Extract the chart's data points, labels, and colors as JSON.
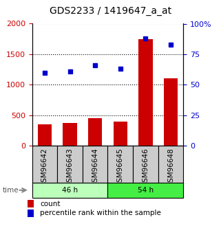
{
  "title": "GDS2233 / 1419647_a_at",
  "samples": [
    "GSM96642",
    "GSM96643",
    "GSM96644",
    "GSM96645",
    "GSM96646",
    "GSM96648"
  ],
  "counts": [
    350,
    375,
    450,
    395,
    1750,
    1100
  ],
  "percentiles": [
    60,
    61,
    66,
    63,
    88,
    83
  ],
  "groups": [
    {
      "label": "46 h",
      "start": 0,
      "end": 2,
      "color": "#bbffbb"
    },
    {
      "label": "54 h",
      "start": 3,
      "end": 5,
      "color": "#44ee44"
    }
  ],
  "bar_color": "#cc0000",
  "dot_color": "#0000cc",
  "left_ylim": [
    0,
    2000
  ],
  "right_ylim": [
    0,
    100
  ],
  "left_yticks": [
    0,
    500,
    1000,
    1500,
    2000
  ],
  "right_yticks": [
    0,
    25,
    50,
    75,
    100
  ],
  "right_yticklabels": [
    "0",
    "25",
    "50",
    "75",
    "100%"
  ],
  "time_label": "time",
  "legend_count": "count",
  "legend_pct": "percentile rank within the sample",
  "sample_box_color": "#cccccc",
  "title_fontsize": 10,
  "tick_fontsize": 8,
  "label_fontsize": 7.5,
  "legend_fontsize": 7.5
}
